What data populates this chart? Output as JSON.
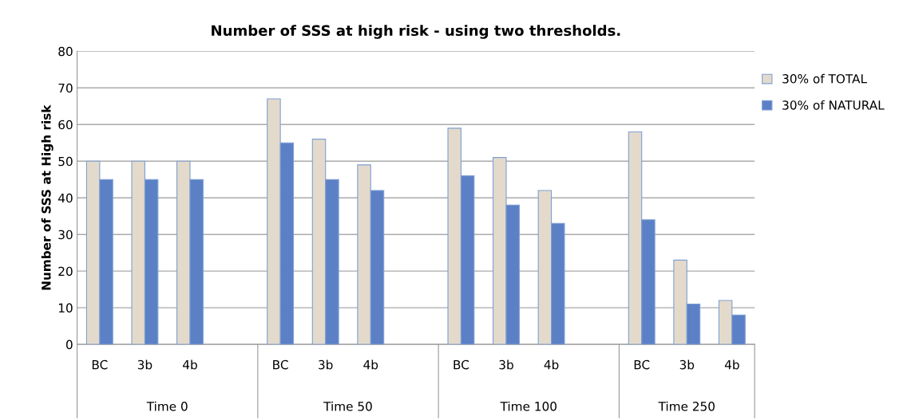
{
  "chart_data": {
    "type": "bar",
    "title": "Number of SSS at high risk - using two thresholds.",
    "ylabel": "Number of SSS at High risk",
    "categories": [
      "BC",
      "3b",
      "4b",
      null,
      "BC",
      "3b",
      "4b",
      null,
      "BC",
      "3b",
      "4b",
      null,
      "BC",
      "3b",
      "4b"
    ],
    "series": [
      {
        "name": "30% of TOTAL",
        "color": "#e3dacb",
        "values": [
          50,
          50,
          50,
          null,
          67,
          56,
          49,
          null,
          59,
          51,
          42,
          null,
          58,
          23,
          12
        ]
      },
      {
        "name": "30% of NATURAL",
        "color": "#5b80c6",
        "values": [
          45,
          45,
          45,
          null,
          55,
          45,
          42,
          null,
          46,
          38,
          33,
          null,
          34,
          11,
          8
        ]
      }
    ],
    "annotations": [
      "Time 0",
      "Time 50",
      "Time 100",
      "Time 250"
    ],
    "ylim": [
      0,
      80
    ],
    "yticks": [
      0,
      10,
      20,
      30,
      40,
      50,
      60,
      70,
      80
    ],
    "grid": "y",
    "legend": "top right"
  }
}
